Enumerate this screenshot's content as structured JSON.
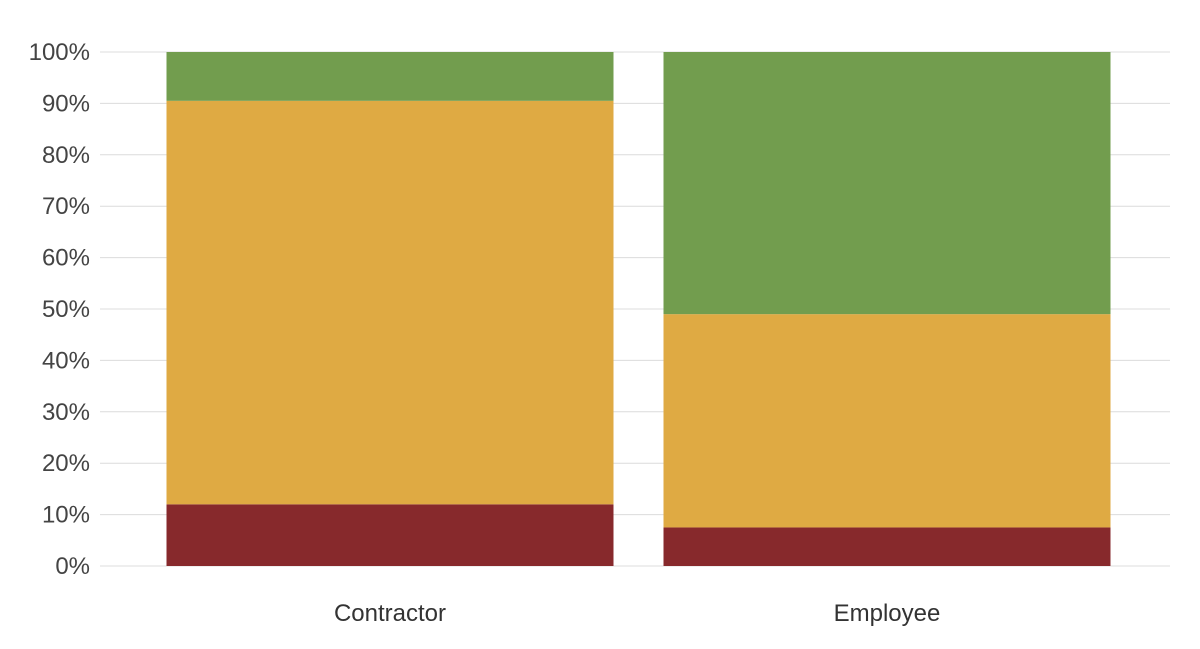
{
  "chart_data": {
    "type": "bar",
    "stacked": true,
    "percent_stacked": true,
    "categories": [
      "Contractor",
      "Employee"
    ],
    "series": [
      {
        "values": [
          12,
          7.5
        ],
        "color": "#87292c"
      },
      {
        "values": [
          78.5,
          41.5
        ],
        "color": "#dfaa43"
      },
      {
        "values": [
          9.5,
          51
        ],
        "color": "#729d4e"
      }
    ],
    "ylim": [
      0,
      100
    ],
    "yticks": [
      "0%",
      "10%",
      "20%",
      "30%",
      "40%",
      "50%",
      "60%",
      "70%",
      "80%",
      "90%",
      "100%"
    ],
    "grid": true,
    "legend": "none"
  }
}
